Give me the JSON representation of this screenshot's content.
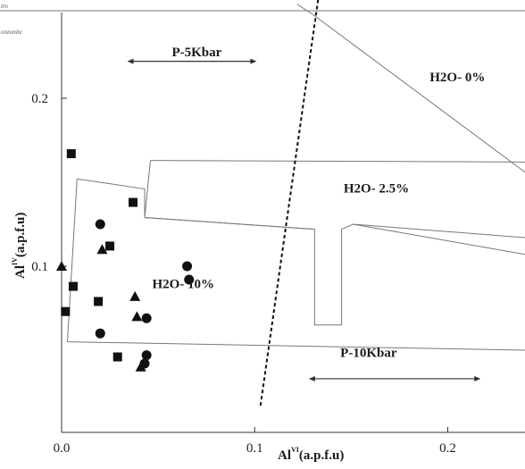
{
  "legend": {
    "entries": [
      "tro",
      "onzonite"
    ]
  },
  "chart_data": {
    "type": "scatter",
    "title": "",
    "xlabel": "Al",
    "xlabel_sup": "VI",
    "xlabel_unit": "(a.p.f.u)",
    "ylabel": "Al",
    "ylabel_sup": "IV",
    "ylabel_unit": "(a.p.f.u)",
    "xlim": [
      0,
      0.24
    ],
    "ylim": [
      0,
      0.25
    ],
    "x_ticks": [
      {
        "value": 0.0,
        "label": "0.0"
      },
      {
        "value": 0.1,
        "label": "0.1"
      },
      {
        "value": 0.2,
        "label": "0.2"
      }
    ],
    "y_ticks": [
      {
        "value": 0.1,
        "label": "0.1"
      },
      {
        "value": 0.2,
        "label": "0.2"
      }
    ],
    "grid": false,
    "region_labels": [
      {
        "text": "P-5Kbar",
        "x": 0.07,
        "y": 0.225
      },
      {
        "text": "H2O- 0%",
        "x": 0.205,
        "y": 0.21
      },
      {
        "text": "H2O- 2.5%",
        "x": 0.163,
        "y": 0.144
      },
      {
        "text": "H2O- 10%",
        "x": 0.063,
        "y": 0.087
      },
      {
        "text": "P-10Kbar",
        "x": 0.159,
        "y": 0.046
      }
    ],
    "arrows": [
      {
        "name": "p5-arrow",
        "x1": 0.034,
        "x2": 0.101,
        "y": 0.222
      },
      {
        "name": "p10-arrow",
        "x1": 0.128,
        "x2": 0.217,
        "y": 0.033
      }
    ],
    "polygons": [
      {
        "name": "h2o-0-boundary",
        "points": [
          [
            0.122,
            0.256
          ],
          [
            0.13,
            0.25
          ],
          [
            0.24,
            0.156
          ]
        ]
      },
      {
        "name": "h2o-2.5-field",
        "points": [
          [
            0.216,
            0.26
          ],
          [
            0.216,
            0.26
          ]
        ]
      },
      {
        "name": "h2o-2.5-boundary",
        "points": [
          [
            0.046,
            0.163
          ],
          [
            0.24,
            0.162
          ],
          [
            0.24,
            0.162
          ]
        ]
      },
      {
        "name": "h2o-2.5-lower",
        "points": [
          [
            0.046,
            0.163
          ],
          [
            0.043,
            0.129
          ],
          [
            0.131,
            0.122
          ],
          [
            0.131,
            0.065
          ],
          [
            0.145,
            0.065
          ],
          [
            0.145,
            0.122
          ],
          [
            0.151,
            0.125
          ],
          [
            0.24,
            0.117
          ]
        ]
      },
      {
        "name": "h2o-2.5-inner",
        "points": [
          [
            0.151,
            0.125
          ],
          [
            0.24,
            0.107
          ]
        ]
      },
      {
        "name": "h2o-10-field",
        "points": [
          [
            0.008,
            0.152
          ],
          [
            0.043,
            0.146
          ],
          [
            0.043,
            0.129
          ],
          [
            0.131,
            0.122
          ]
        ]
      },
      {
        "name": "h2o-10-left",
        "points": [
          [
            0.008,
            0.152
          ],
          [
            0.003,
            0.055
          ]
        ]
      },
      {
        "name": "h2o-10-bottom",
        "points": [
          [
            0.003,
            0.055
          ],
          [
            0.24,
            0.05
          ]
        ]
      }
    ],
    "pressure_line": [
      [
        0.103,
        0.017
      ],
      [
        0.133,
        0.26
      ]
    ],
    "series": [
      {
        "marker": "square",
        "points": [
          [
            0.005,
            0.167
          ],
          [
            0.037,
            0.138
          ],
          [
            0.025,
            0.112
          ],
          [
            0.006,
            0.088
          ],
          [
            0.019,
            0.079
          ],
          [
            0.002,
            0.073
          ],
          [
            0.029,
            0.046
          ]
        ]
      },
      {
        "marker": "circle",
        "points": [
          [
            0.02,
            0.125
          ],
          [
            0.065,
            0.1
          ],
          [
            0.066,
            0.092
          ],
          [
            0.044,
            0.069
          ],
          [
            0.02,
            0.06
          ],
          [
            0.044,
            0.047
          ],
          [
            0.043,
            0.042
          ]
        ]
      },
      {
        "marker": "triangle",
        "points": [
          [
            0.0,
            0.1
          ],
          [
            0.021,
            0.11
          ],
          [
            0.038,
            0.082
          ],
          [
            0.039,
            0.07
          ],
          [
            0.041,
            0.04
          ]
        ]
      }
    ]
  }
}
